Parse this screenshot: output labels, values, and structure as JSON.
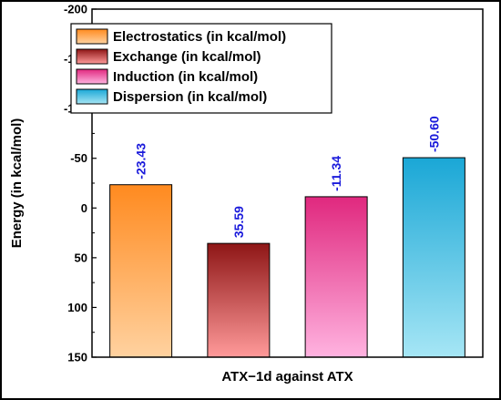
{
  "chart_data": {
    "type": "bar",
    "xlabel": "ATX−1d against ATX",
    "ylabel": "Energy (in kcal/mol)",
    "ylim": [
      -200,
      150
    ],
    "y_inverted": true,
    "yticks": [
      -200,
      -150,
      -100,
      -50,
      0,
      50,
      100,
      150
    ],
    "ytick_labels": [
      "-200",
      "-150",
      "-100",
      "-50",
      "0",
      "50",
      "100",
      "150"
    ],
    "grid": false,
    "legend_position": "top-left",
    "series": [
      {
        "name": "Electrostatics (in kcal/mol)",
        "value": -23.43,
        "label": "-23.43",
        "color_top": "#ff8a1f",
        "color_bottom": "#ffd2a0"
      },
      {
        "name": "Exchange (in kcal/mol)",
        "value": 35.59,
        "label": "35.59",
        "color_top": "#8e1616",
        "color_bottom": "#ff9a9a"
      },
      {
        "name": "Induction (in kcal/mol)",
        "value": -11.34,
        "label": "-11.34",
        "color_top": "#e0287e",
        "color_bottom": "#ffb3e0"
      },
      {
        "name": "Dispersion (in kcal/mol)",
        "value": -50.6,
        "label": "-50.60",
        "color_top": "#1aa7d6",
        "color_bottom": "#a6e6f5"
      }
    ]
  }
}
